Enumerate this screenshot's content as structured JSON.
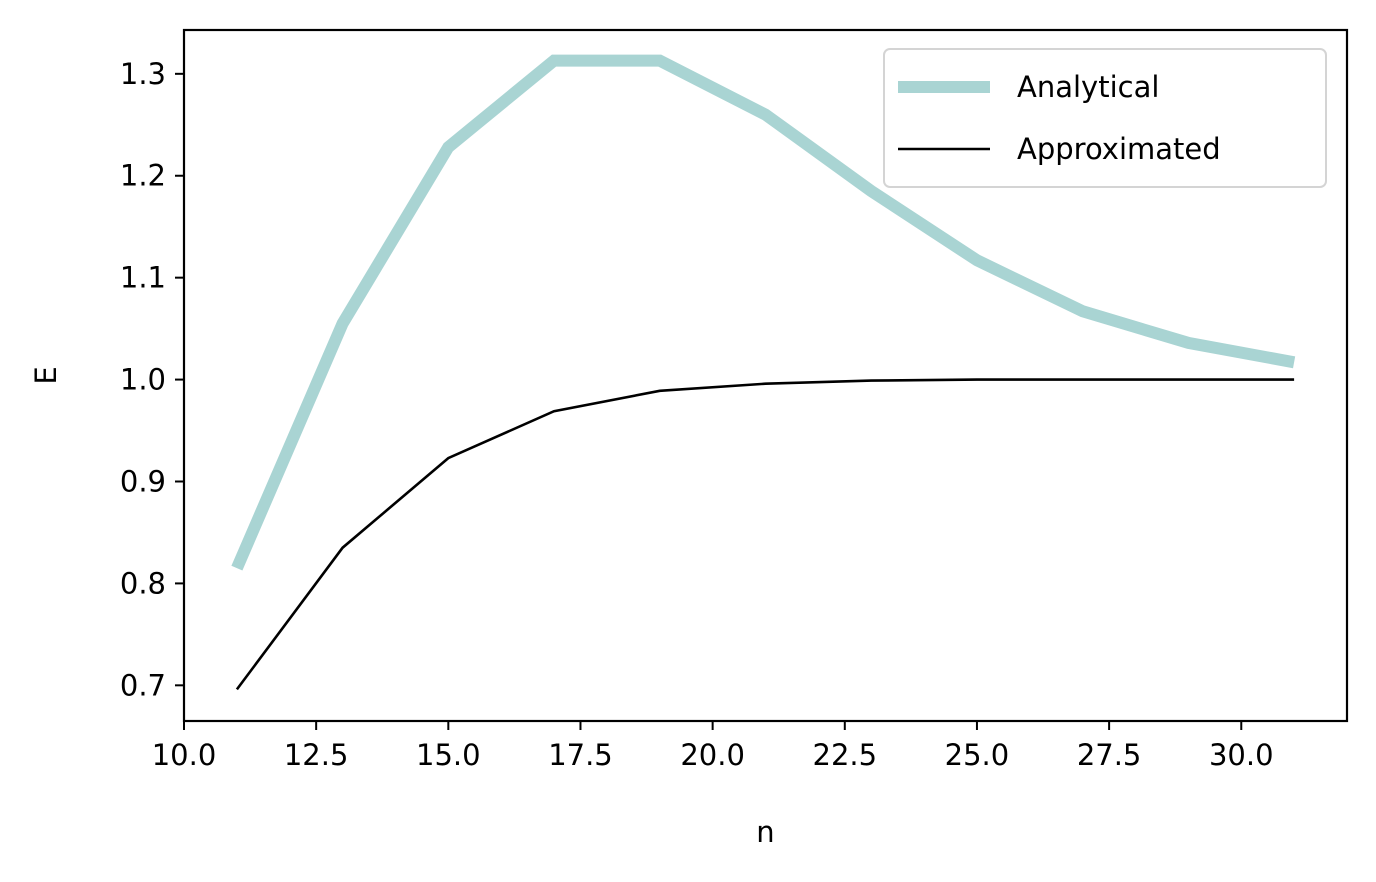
{
  "chart_data": {
    "type": "line",
    "xlabel": "n",
    "ylabel": "E",
    "xlim": [
      10.0,
      32.0
    ],
    "ylim": [
      0.665,
      1.343
    ],
    "xticks": [
      10.0,
      12.5,
      15.0,
      17.5,
      20.0,
      22.5,
      25.0,
      27.5,
      30.0
    ],
    "xtick_labels": [
      "10.0",
      "12.5",
      "15.0",
      "17.5",
      "20.0",
      "22.5",
      "25.0",
      "27.5",
      "30.0"
    ],
    "yticks": [
      0.7,
      0.8,
      0.9,
      1.0,
      1.1,
      1.2,
      1.3
    ],
    "ytick_labels": [
      "0.7",
      "0.8",
      "0.9",
      "1.0",
      "1.1",
      "1.2",
      "1.3"
    ],
    "grid": false,
    "legend_position": "top-right",
    "x": [
      11,
      13,
      15,
      17,
      19,
      21,
      23,
      25,
      27,
      29,
      31
    ],
    "series": [
      {
        "name": "Analytical",
        "color": "#a9d4d3",
        "values": [
          0.815,
          1.055,
          1.228,
          1.313,
          1.313,
          1.26,
          1.185,
          1.117,
          1.067,
          1.036,
          1.017
        ]
      },
      {
        "name": "Approximated",
        "color": "#000000",
        "values": [
          0.696,
          0.835,
          0.923,
          0.969,
          0.989,
          0.996,
          0.999,
          1.0,
          1.0,
          1.0,
          1.0
        ]
      }
    ]
  }
}
